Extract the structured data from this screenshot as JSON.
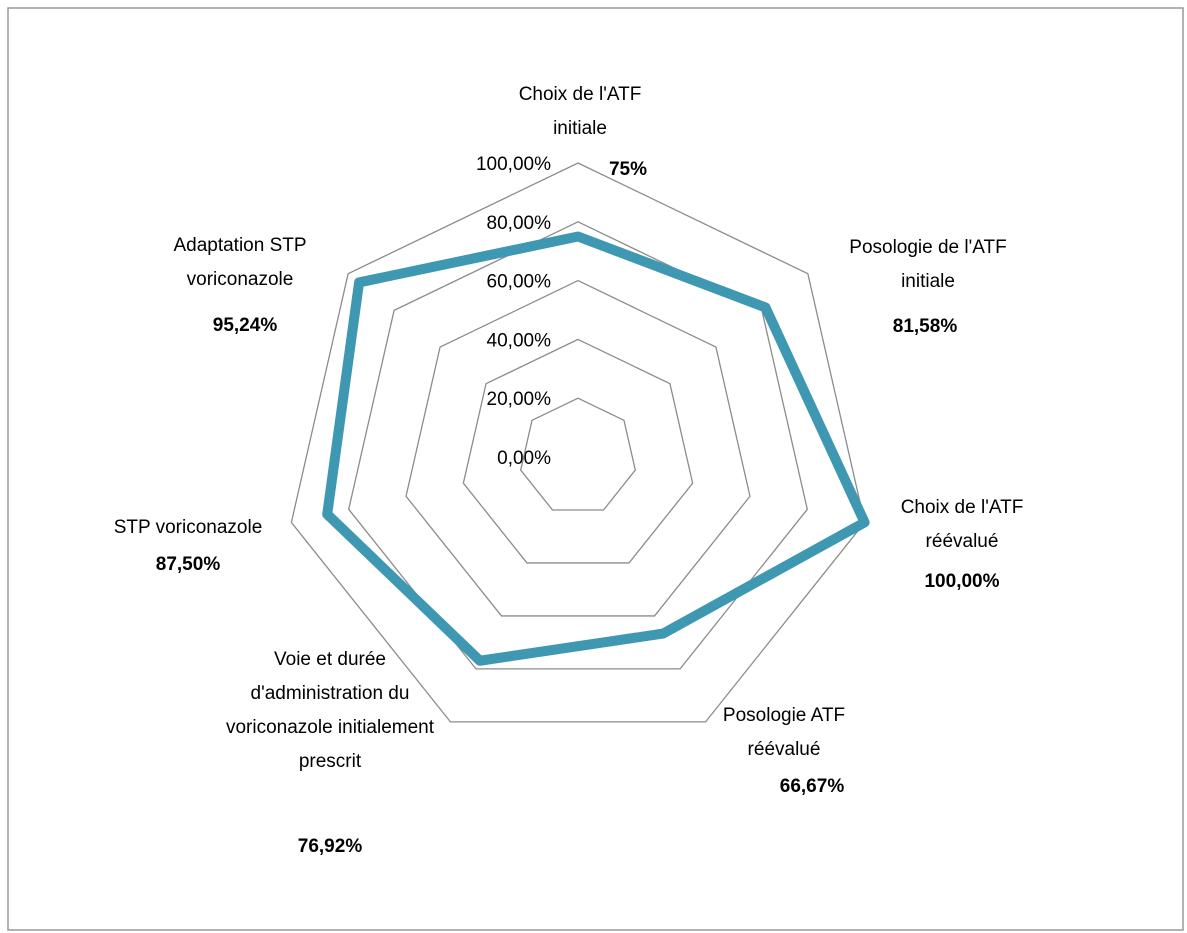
{
  "chart_data": {
    "type": "radar",
    "categories": [
      "Choix de l'ATF initiale",
      "Posologie de l'ATF initiale",
      "Choix de l'ATF réévalué",
      "Posologie ATF réévalué",
      "Voie et durée d'administration du voriconazole initialement prescrit",
      "STP voriconazole",
      "Adaptation STP voriconazole"
    ],
    "series": [
      {
        "color": "#3f98b2",
        "values": [
          75,
          81.58,
          100,
          66.67,
          76.92,
          87.5,
          95.24
        ],
        "value_labels": [
          "75%",
          "81,58%",
          "100,00%",
          "66,67%",
          "76,92%",
          "87,50%",
          "95,24%"
        ]
      }
    ],
    "ylim": [
      0,
      100
    ],
    "yticks": [
      {
        "value": 0,
        "label": "0,00%"
      },
      {
        "value": 20,
        "label": "20,00%"
      },
      {
        "value": 40,
        "label": "40,00%"
      },
      {
        "value": 60,
        "label": "60,00%"
      },
      {
        "value": 80,
        "label": "80,00%"
      },
      {
        "value": 100,
        "label": "100,00%"
      }
    ],
    "grid": true
  }
}
